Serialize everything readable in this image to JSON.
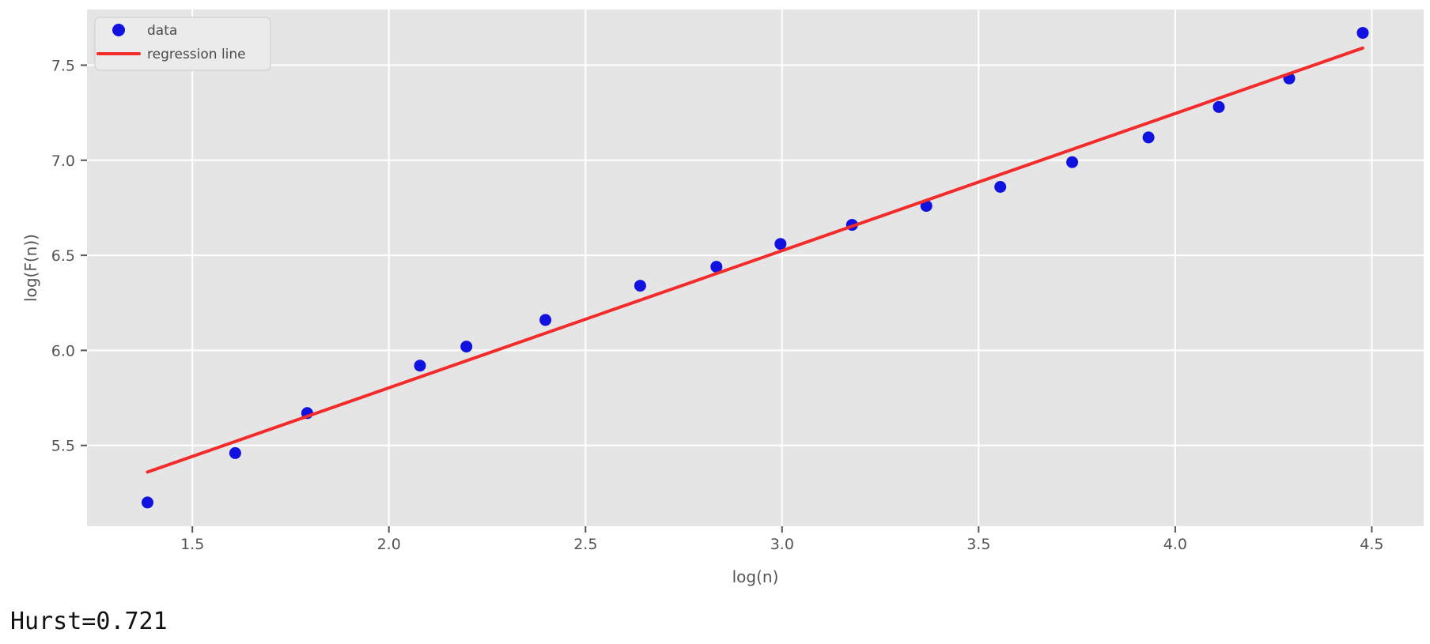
{
  "figure": {
    "hurst_label": "Hurst=0.721"
  },
  "chart_data": {
    "type": "scatter",
    "title": "",
    "xlabel": "log(n)",
    "ylabel": "log(F(n))",
    "xlim": [
      1.232,
      4.632
    ],
    "ylim": [
      5.075,
      7.793
    ],
    "xticks": [
      1.5,
      2.0,
      2.5,
      3.0,
      3.5,
      4.0,
      4.5
    ],
    "yticks": [
      5.5,
      6.0,
      6.5,
      7.0,
      7.5
    ],
    "grid": true,
    "legend_position": "upper left",
    "style": {
      "plot_bg": "#e5e5e5",
      "grid_color": "#ffffff",
      "tick_color": "#555555",
      "text_color": "#555555",
      "point_color": "#1111e0",
      "line_color": "#f32b2b",
      "legend_bg": "#ebebeb",
      "legend_border": "#d4d4d4"
    },
    "series": [
      {
        "name": "data",
        "kind": "scatter",
        "x": [
          1.386,
          1.609,
          1.792,
          2.079,
          2.197,
          2.398,
          2.639,
          2.833,
          2.996,
          3.178,
          3.367,
          3.555,
          3.738,
          3.932,
          4.111,
          4.29,
          4.477
        ],
        "y": [
          5.2,
          5.46,
          5.67,
          5.92,
          6.02,
          6.16,
          6.34,
          6.44,
          6.56,
          6.66,
          6.76,
          6.86,
          6.99,
          7.12,
          7.28,
          7.43,
          7.67
        ]
      },
      {
        "name": "regression line",
        "kind": "line",
        "x": [
          1.386,
          4.477
        ],
        "y": [
          5.36,
          7.59
        ]
      }
    ]
  }
}
